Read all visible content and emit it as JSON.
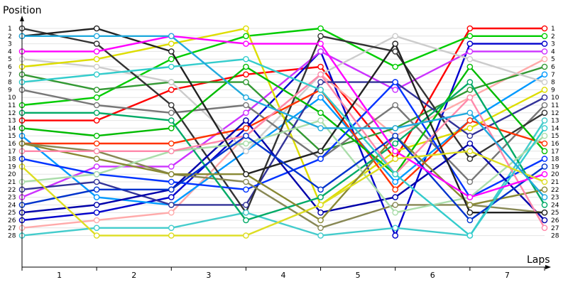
{
  "chart_data": {
    "type": "line",
    "ylabel": "Position",
    "xlabel": "Laps",
    "x_ticks": [
      "1",
      "2",
      "3",
      "4",
      "5",
      "6",
      "7"
    ],
    "y_ticks": [
      "1",
      "2",
      "3",
      "4",
      "5",
      "6",
      "7",
      "8",
      "9",
      "10",
      "11",
      "12",
      "13",
      "14",
      "15",
      "16",
      "17",
      "18",
      "19",
      "20",
      "21",
      "22",
      "23",
      "24",
      "25",
      "26",
      "27",
      "28"
    ],
    "y_axis": "inverted position, 1 at top",
    "grid": "horizontal",
    "legend": "none",
    "checkpoints": [
      0,
      1,
      2,
      3,
      4,
      5,
      6,
      7
    ],
    "series": [
      {
        "color": "#ff0000",
        "positions": [
          13,
          13,
          9,
          7,
          6,
          18,
          1,
          1
        ]
      },
      {
        "color": "#00cc00",
        "positions": [
          11,
          10,
          5,
          2,
          1,
          6,
          2,
          2
        ]
      },
      {
        "color": "#0000cc",
        "positions": [
          26,
          25,
          23,
          14,
          4,
          28,
          3,
          3
        ]
      },
      {
        "color": "#cc33ff",
        "positions": [
          23,
          19,
          19,
          12,
          4,
          9,
          4,
          4
        ]
      },
      {
        "color": "#ffaaaa",
        "positions": [
          27,
          26,
          25,
          15,
          7,
          15,
          10,
          5
        ]
      },
      {
        "color": "#339933",
        "positions": [
          7,
          9,
          8,
          8,
          17,
          14,
          9,
          6
        ]
      },
      {
        "color": "#0099ff",
        "positions": [
          15,
          23,
          24,
          17,
          10,
          21,
          13,
          7
        ]
      },
      {
        "color": "#cccccc",
        "positions": [
          5,
          6,
          8,
          17,
          7,
          2,
          5,
          8
        ]
      },
      {
        "color": "#dddd00",
        "positions": [
          6,
          5,
          3,
          1,
          24,
          17,
          14,
          9
        ]
      },
      {
        "color": "#333399",
        "positions": [
          22,
          21,
          24,
          24,
          8,
          8,
          15,
          10
        ]
      },
      {
        "color": "#777777",
        "positions": [
          9,
          11,
          12,
          11,
          18,
          11,
          21,
          11
        ]
      },
      {
        "color": "#333333",
        "positions": [
          1,
          3,
          11,
          25,
          2,
          4,
          18,
          12
        ]
      },
      {
        "color": "#44cccc",
        "positions": [
          28,
          27,
          27,
          25,
          28,
          27,
          28,
          13
        ]
      },
      {
        "color": "#ff3300",
        "positions": [
          16,
          16,
          16,
          14,
          9,
          22,
          13,
          16
        ]
      },
      {
        "color": "#00bb00",
        "positions": [
          14,
          15,
          14,
          6,
          12,
          20,
          6,
          17
        ]
      },
      {
        "color": "#0033ff",
        "positions": [
          18,
          20,
          21,
          22,
          18,
          8,
          23,
          18
        ]
      },
      {
        "color": "#0000aa",
        "positions": [
          25,
          24,
          22,
          13,
          25,
          23,
          16,
          26
        ]
      },
      {
        "color": "#888855",
        "positions": [
          16,
          17,
          20,
          21,
          27,
          24,
          24,
          25
        ]
      },
      {
        "color": "#00aa66",
        "positions": [
          12,
          12,
          13,
          26,
          23,
          16,
          8,
          24
        ]
      },
      {
        "color": "#aaddaa",
        "positions": [
          21,
          20,
          17,
          16,
          13,
          25,
          23,
          15
        ]
      },
      {
        "color": "#888833",
        "positions": [
          16,
          18,
          20,
          20,
          26,
          15,
          24,
          22
        ]
      },
      {
        "color": "#ff88aa",
        "positions": [
          17,
          17,
          17,
          15,
          7,
          20,
          10,
          27
        ]
      },
      {
        "color": "#222222",
        "positions": [
          2,
          1,
          4,
          20,
          17,
          3,
          25,
          25
        ]
      },
      {
        "color": "#0033cc",
        "positions": [
          24,
          22,
          22,
          15,
          22,
          15,
          26,
          19
        ]
      },
      {
        "color": "#33cccc",
        "positions": [
          8,
          7,
          6,
          5,
          9,
          20,
          28,
          14
        ]
      },
      {
        "color": "#ff00ff",
        "positions": [
          4,
          4,
          2,
          3,
          3,
          17,
          23,
          20
        ]
      },
      {
        "color": "#dddd22",
        "positions": [
          19,
          28,
          28,
          28,
          24,
          18,
          17,
          21
        ]
      },
      {
        "color": "#22aadd",
        "positions": [
          2,
          2,
          2,
          10,
          14,
          14,
          12,
          23
        ]
      }
    ]
  }
}
